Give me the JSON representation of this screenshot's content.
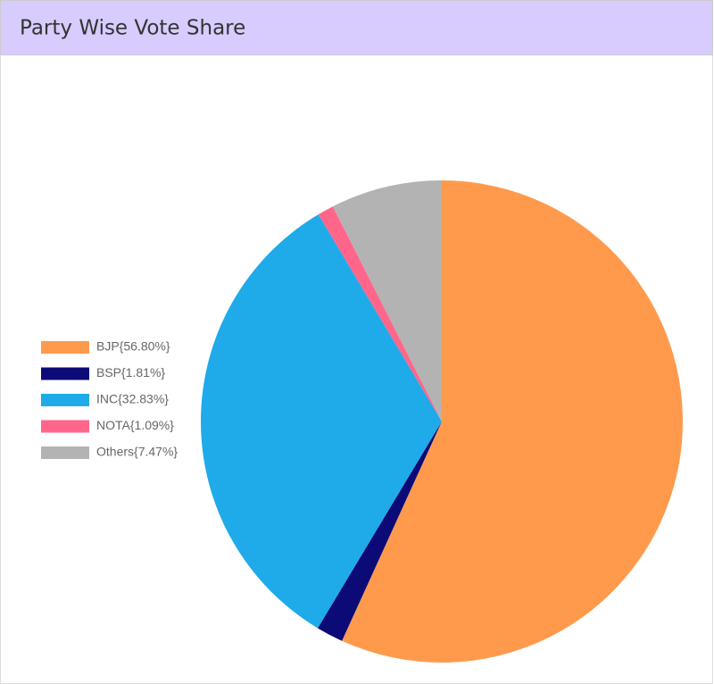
{
  "chart_data": {
    "type": "pie",
    "title": "Party Wise Vote Share",
    "categories": [
      "BJP{56.80%}",
      "BSP{1.81%}",
      "INC{32.83%}",
      "NOTA{1.09%}",
      "Others{7.47%}"
    ],
    "values": [
      56.8,
      1.81,
      32.83,
      1.09,
      7.47
    ],
    "colors": [
      "#ff9a4d",
      "#0b0a77",
      "#1faae9",
      "#ff6689",
      "#b3b3b3"
    ],
    "legend": "left"
  }
}
